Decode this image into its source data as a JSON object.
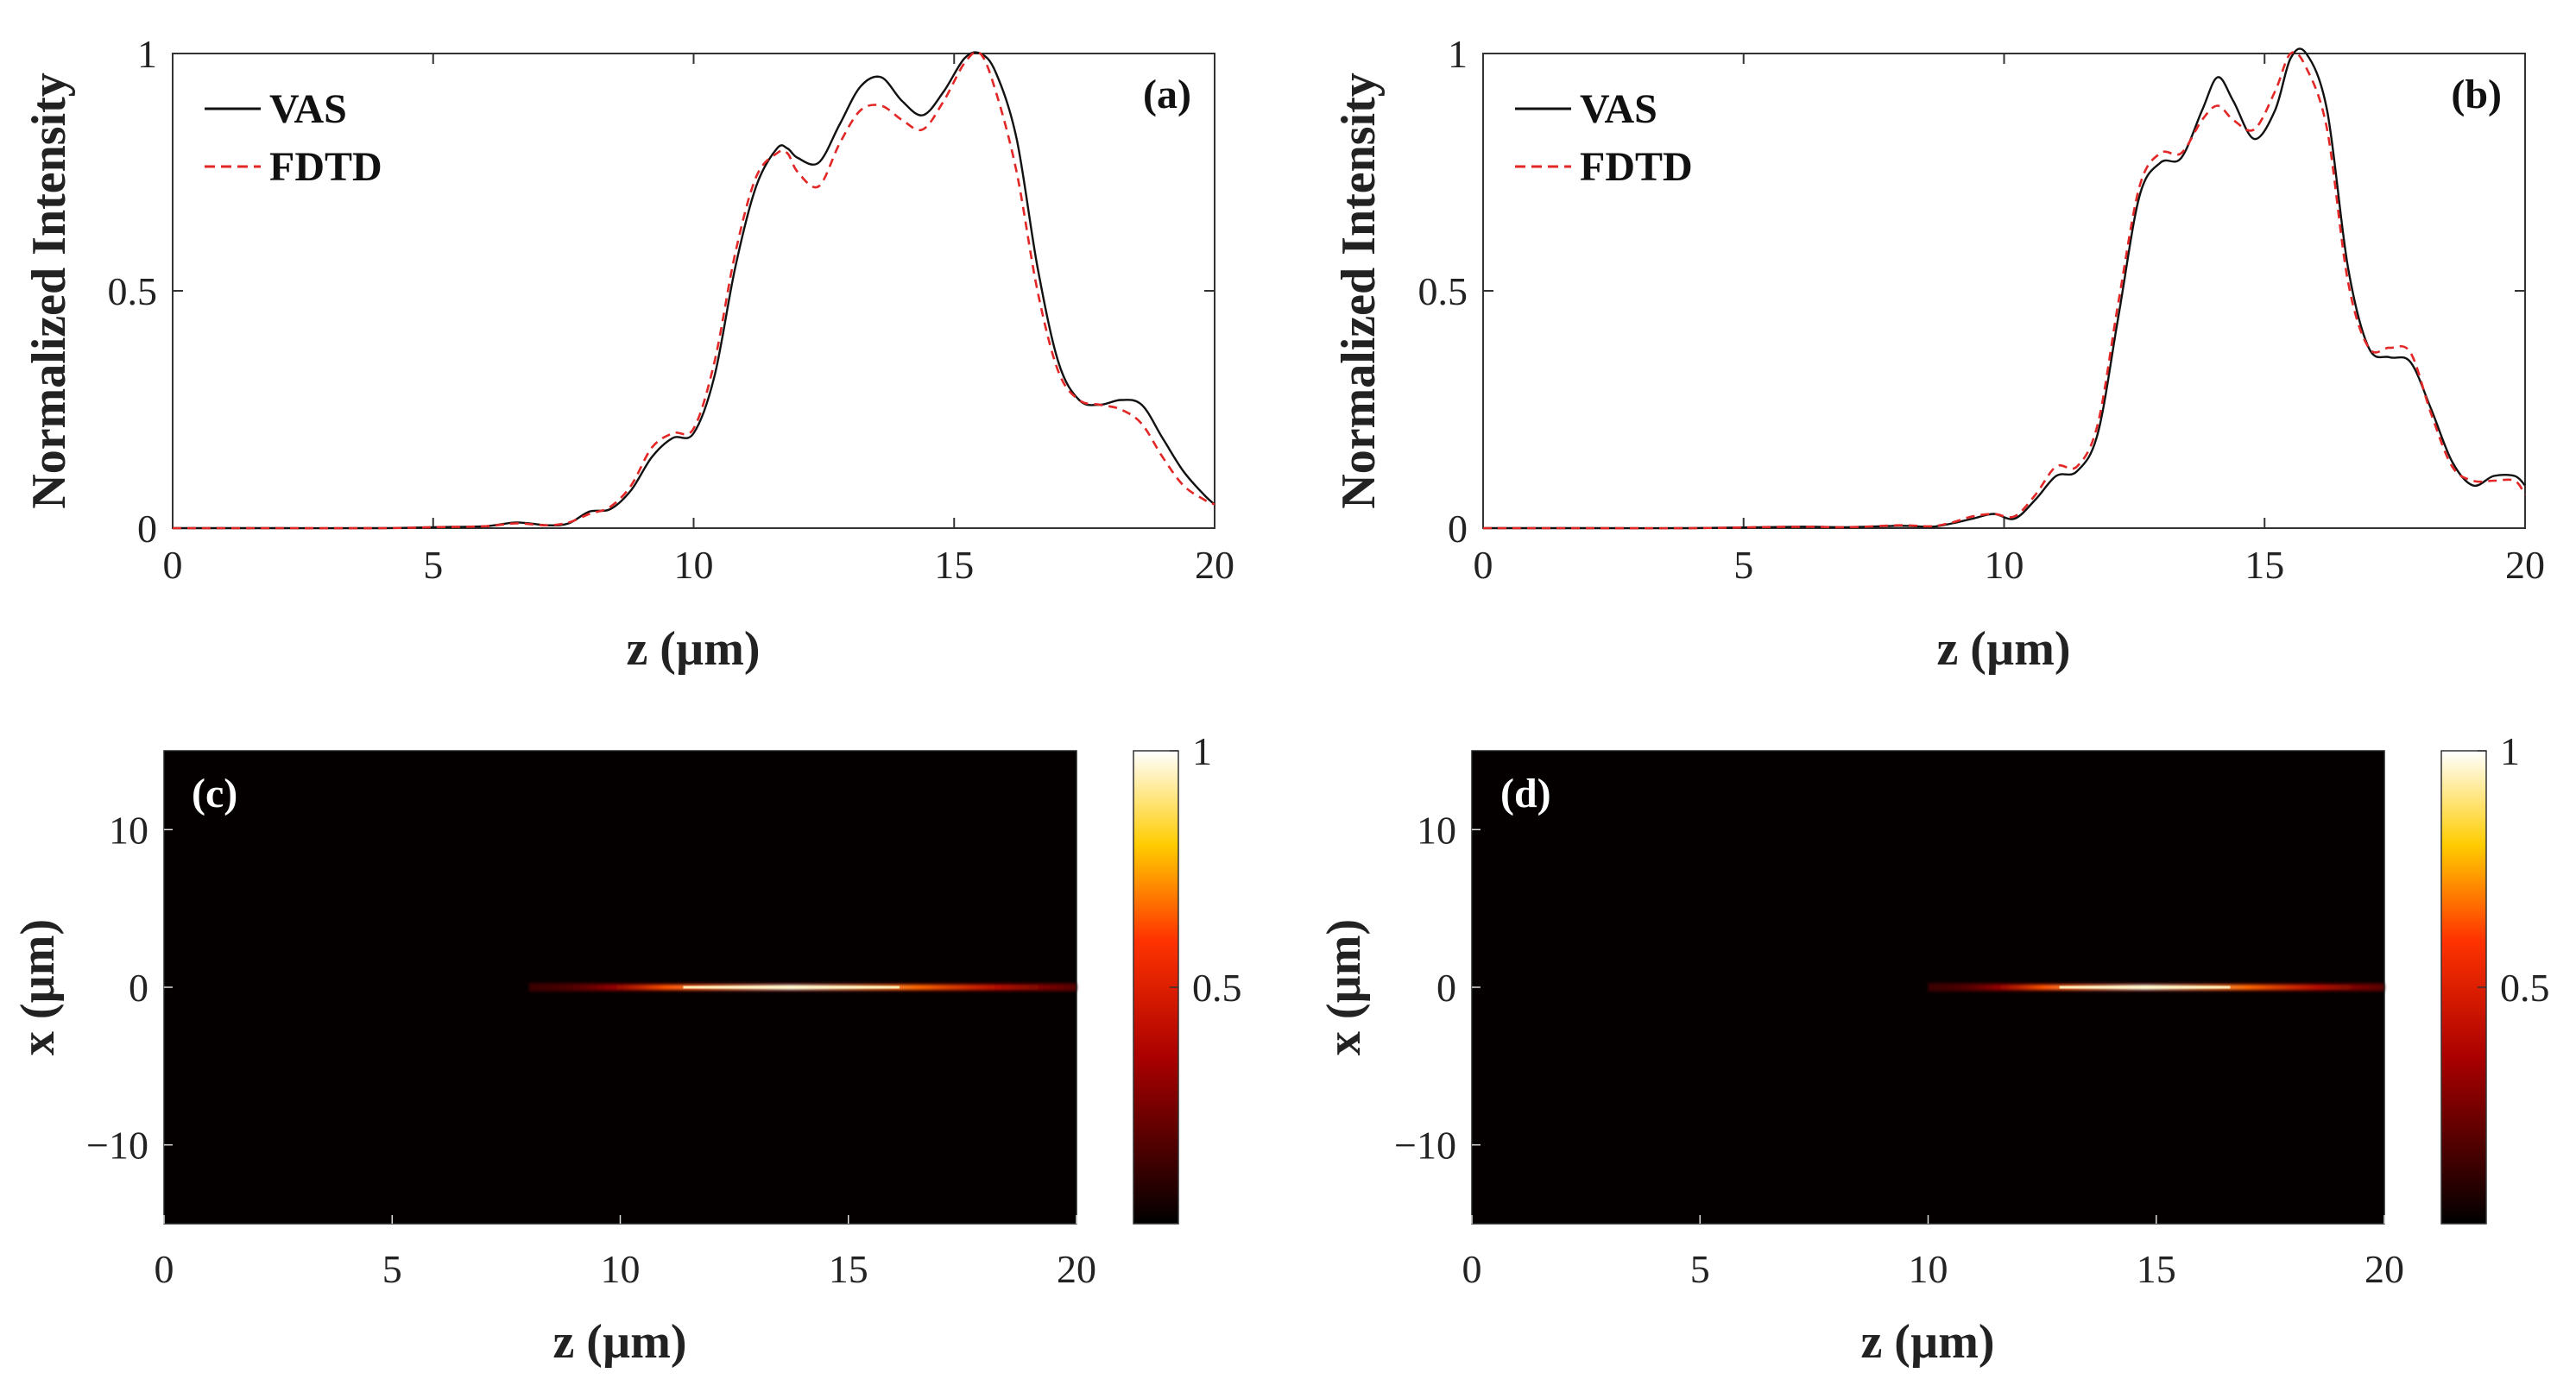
{
  "colors": {
    "vas": "#111111",
    "fdtd": "#e32626",
    "axis": "#333333",
    "background": "#ffffff"
  },
  "chart_data": [
    {
      "type": "line",
      "panel_label": "(a)",
      "xlabel": "z (µm)",
      "ylabel": "Normalized Intensity",
      "xlim": [
        0,
        20
      ],
      "ylim": [
        0,
        1
      ],
      "xticks": [
        "0",
        "5",
        "10",
        "15",
        "20"
      ],
      "yticks": [
        "0",
        "0.5",
        "1"
      ],
      "legend": {
        "position": "top-left",
        "entries": [
          "VAS",
          "FDTD"
        ]
      },
      "x": [
        0,
        2,
        4,
        5,
        6,
        6.6,
        7.2,
        7.6,
        8,
        8.4,
        8.8,
        9.2,
        9.6,
        10,
        10.4,
        10.8,
        11.2,
        11.6,
        11.8,
        12,
        12.4,
        12.8,
        13.2,
        13.6,
        14,
        14.4,
        14.8,
        15.2,
        15.5,
        15.8,
        16.2,
        16.6,
        17,
        17.4,
        17.8,
        18.2,
        18.6,
        19,
        19.4,
        19.8,
        20
      ],
      "series": [
        {
          "name": "VAS",
          "style": "solid",
          "values": [
            0,
            0,
            0,
            0.002,
            0.004,
            0.012,
            0.006,
            0.01,
            0.035,
            0.04,
            0.08,
            0.15,
            0.19,
            0.2,
            0.32,
            0.55,
            0.72,
            0.8,
            0.8,
            0.78,
            0.77,
            0.85,
            0.93,
            0.95,
            0.9,
            0.87,
            0.92,
            0.99,
            1.0,
            0.96,
            0.82,
            0.55,
            0.35,
            0.27,
            0.26,
            0.27,
            0.26,
            0.19,
            0.12,
            0.07,
            0.05
          ]
        },
        {
          "name": "FDTD",
          "style": "dashed",
          "values": [
            0,
            0,
            0,
            0.002,
            0.004,
            0.01,
            0.006,
            0.012,
            0.03,
            0.045,
            0.09,
            0.17,
            0.2,
            0.21,
            0.35,
            0.58,
            0.74,
            0.79,
            0.79,
            0.75,
            0.72,
            0.81,
            0.88,
            0.89,
            0.86,
            0.84,
            0.9,
            0.98,
            1.0,
            0.92,
            0.75,
            0.5,
            0.33,
            0.27,
            0.26,
            0.25,
            0.22,
            0.15,
            0.09,
            0.06,
            0.05
          ]
        }
      ]
    },
    {
      "type": "line",
      "panel_label": "(b)",
      "xlabel": "z (µm)",
      "ylabel": "Normalized Intensity",
      "xlim": [
        0,
        20
      ],
      "ylim": [
        0,
        1
      ],
      "xticks": [
        "0",
        "5",
        "10",
        "15",
        "20"
      ],
      "yticks": [
        "0",
        "0.5",
        "1"
      ],
      "legend": {
        "position": "top-left",
        "entries": [
          "VAS",
          "FDTD"
        ]
      },
      "x": [
        0,
        2,
        4,
        6,
        7,
        8,
        8.6,
        9,
        9.4,
        9.8,
        10.2,
        10.6,
        11,
        11.4,
        11.8,
        12.2,
        12.6,
        13,
        13.4,
        13.8,
        14.1,
        14.4,
        14.8,
        15.2,
        15.5,
        15.8,
        16.2,
        16.6,
        17,
        17.4,
        17.8,
        18.2,
        18.6,
        19,
        19.4,
        19.8,
        20
      ],
      "series": [
        {
          "name": "VAS",
          "style": "solid",
          "values": [
            0,
            0,
            0,
            0.003,
            0.002,
            0.005,
            0.003,
            0.01,
            0.02,
            0.03,
            0.02,
            0.06,
            0.11,
            0.12,
            0.2,
            0.45,
            0.7,
            0.77,
            0.78,
            0.88,
            0.95,
            0.9,
            0.82,
            0.88,
            0.99,
            1.0,
            0.88,
            0.55,
            0.38,
            0.36,
            0.35,
            0.25,
            0.14,
            0.09,
            0.11,
            0.11,
            0.09
          ]
        },
        {
          "name": "FDTD",
          "style": "dashed",
          "values": [
            0,
            0,
            0,
            0.003,
            0.002,
            0.006,
            0.004,
            0.012,
            0.025,
            0.03,
            0.025,
            0.07,
            0.13,
            0.13,
            0.22,
            0.48,
            0.72,
            0.79,
            0.79,
            0.86,
            0.89,
            0.86,
            0.84,
            0.92,
            1.0,
            0.97,
            0.84,
            0.52,
            0.38,
            0.38,
            0.37,
            0.24,
            0.13,
            0.1,
            0.1,
            0.1,
            0.07
          ]
        }
      ]
    },
    {
      "type": "heatmap",
      "panel_label": "(c)",
      "xlabel": "z (µm)",
      "ylabel": "x (µm)",
      "xlim": [
        0,
        20
      ],
      "ylim": [
        -15,
        15
      ],
      "xticks": [
        "0",
        "5",
        "10",
        "15",
        "20"
      ],
      "yticks": [
        "10",
        "0",
        "−10"
      ],
      "colormap": "hot",
      "colorbar": {
        "range": [
          0,
          1
        ],
        "ticks": [
          "1",
          "0.5"
        ]
      },
      "focus": {
        "x_center": 0,
        "z_start": 8,
        "z_peak_start": 11,
        "z_peak_end": 16.5,
        "z_end": 20
      }
    },
    {
      "type": "heatmap",
      "panel_label": "(d)",
      "xlabel": "z (µm)",
      "ylabel": "x (µm)",
      "xlim": [
        0,
        20
      ],
      "ylim": [
        -15,
        15
      ],
      "xticks": [
        "0",
        "5",
        "10",
        "15",
        "20"
      ],
      "yticks": [
        "10",
        "0",
        "−10"
      ],
      "colormap": "hot",
      "colorbar": {
        "range": [
          0,
          1
        ],
        "ticks": [
          "1",
          "0.5"
        ]
      },
      "focus": {
        "x_center": 0,
        "z_start": 10,
        "z_peak_start": 12.5,
        "z_peak_end": 17,
        "z_end": 20
      }
    }
  ]
}
